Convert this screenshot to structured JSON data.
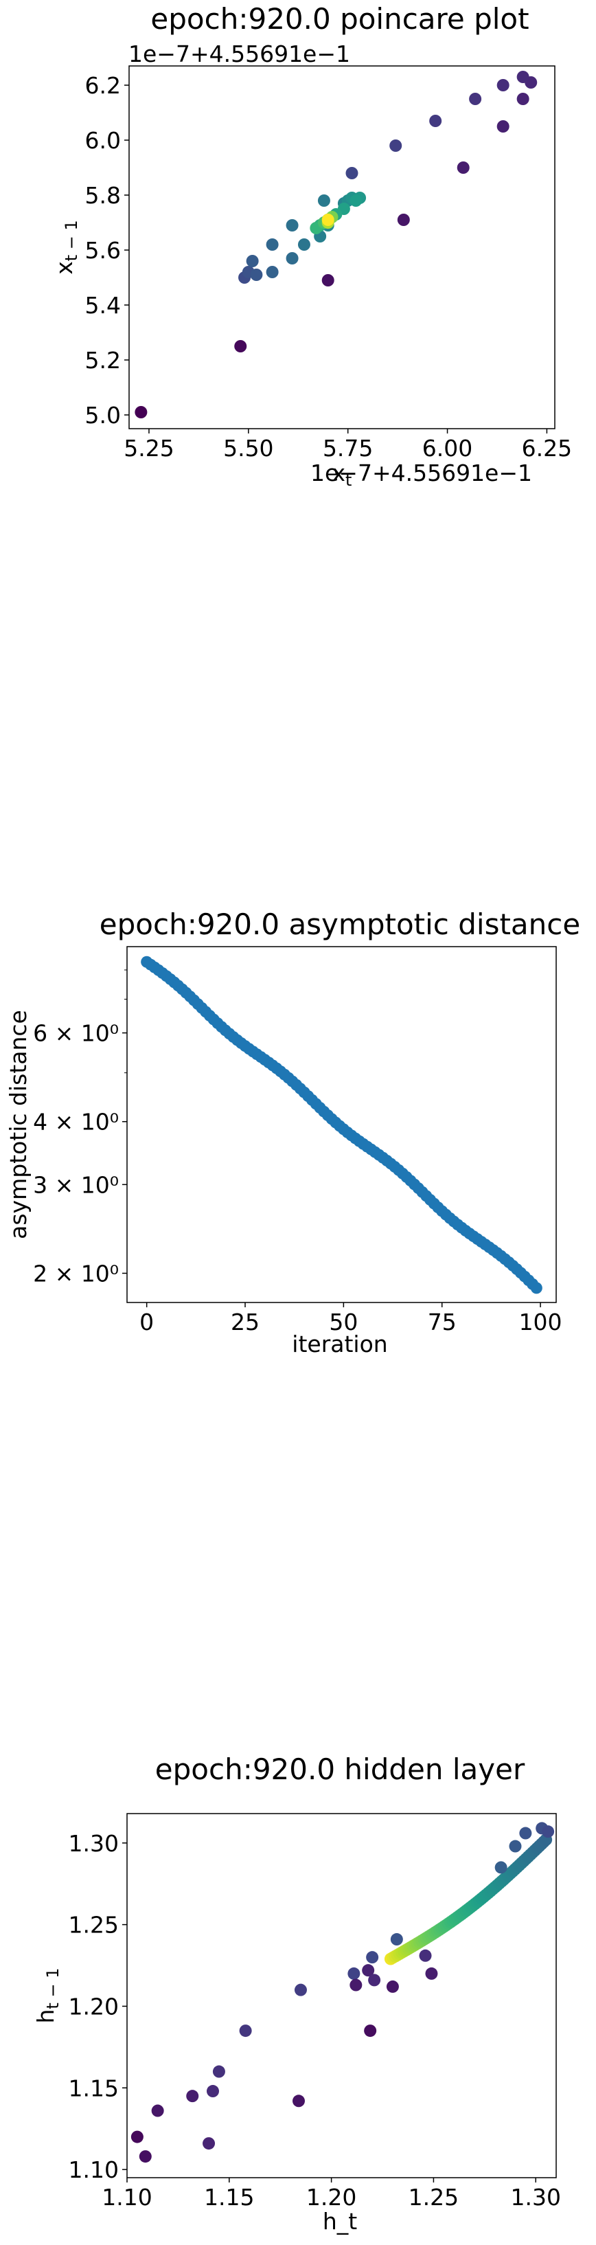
{
  "chart_data": [
    {
      "type": "scatter",
      "title": "epoch:920.0 poincare plot",
      "xlabel": "x_t",
      "ylabel": "x_{t-1}",
      "x_offset_label": "1e−7+4.55691e−1",
      "y_offset_label": "1e−7+4.55691e−1",
      "xlim": [
        5.2,
        6.27
      ],
      "ylim": [
        4.95,
        6.27
      ],
      "xticks": [
        "5.25",
        "5.50",
        "5.75",
        "6.00",
        "6.25"
      ],
      "yticks": [
        "5.0",
        "5.2",
        "5.4",
        "5.6",
        "5.8",
        "6.0",
        "6.2"
      ],
      "colormap": "viridis",
      "points": [
        {
          "x": 5.23,
          "y": 5.01,
          "c": 0.0
        },
        {
          "x": 5.48,
          "y": 5.25,
          "c": 0.02
        },
        {
          "x": 5.7,
          "y": 5.49,
          "c": 0.04
        },
        {
          "x": 5.89,
          "y": 5.71,
          "c": 0.06
        },
        {
          "x": 6.04,
          "y": 5.9,
          "c": 0.08
        },
        {
          "x": 6.14,
          "y": 6.05,
          "c": 0.09
        },
        {
          "x": 6.19,
          "y": 6.15,
          "c": 0.1
        },
        {
          "x": 6.21,
          "y": 6.21,
          "c": 0.11
        },
        {
          "x": 6.19,
          "y": 6.23,
          "c": 0.12
        },
        {
          "x": 6.14,
          "y": 6.2,
          "c": 0.13
        },
        {
          "x": 6.07,
          "y": 6.15,
          "c": 0.15
        },
        {
          "x": 5.97,
          "y": 6.07,
          "c": 0.17
        },
        {
          "x": 5.87,
          "y": 5.98,
          "c": 0.19
        },
        {
          "x": 5.76,
          "y": 5.88,
          "c": 0.21
        },
        {
          "x": 5.49,
          "y": 5.5,
          "c": 0.23
        },
        {
          "x": 5.5,
          "y": 5.52,
          "c": 0.25
        },
        {
          "x": 5.52,
          "y": 5.51,
          "c": 0.27
        },
        {
          "x": 5.51,
          "y": 5.56,
          "c": 0.29
        },
        {
          "x": 5.56,
          "y": 5.52,
          "c": 0.31
        },
        {
          "x": 5.56,
          "y": 5.62,
          "c": 0.33
        },
        {
          "x": 5.61,
          "y": 5.57,
          "c": 0.35
        },
        {
          "x": 5.61,
          "y": 5.69,
          "c": 0.37
        },
        {
          "x": 5.64,
          "y": 5.62,
          "c": 0.39
        },
        {
          "x": 5.69,
          "y": 5.78,
          "c": 0.41
        },
        {
          "x": 5.68,
          "y": 5.65,
          "c": 0.43
        },
        {
          "x": 5.74,
          "y": 5.77,
          "c": 0.45
        },
        {
          "x": 5.7,
          "y": 5.69,
          "c": 0.47
        },
        {
          "x": 5.75,
          "y": 5.78,
          "c": 0.49
        },
        {
          "x": 5.76,
          "y": 5.79,
          "c": 0.51
        },
        {
          "x": 5.78,
          "y": 5.79,
          "c": 0.53
        },
        {
          "x": 5.77,
          "y": 5.78,
          "c": 0.55
        },
        {
          "x": 5.74,
          "y": 5.75,
          "c": 0.57
        },
        {
          "x": 5.72,
          "y": 5.73,
          "c": 0.59
        },
        {
          "x": 5.7,
          "y": 5.71,
          "c": 0.61
        },
        {
          "x": 5.68,
          "y": 5.69,
          "c": 0.63
        },
        {
          "x": 5.67,
          "y": 5.68,
          "c": 0.66
        },
        {
          "x": 5.69,
          "y": 5.7,
          "c": 0.7
        },
        {
          "x": 5.7,
          "y": 5.71,
          "c": 0.75
        },
        {
          "x": 5.71,
          "y": 5.72,
          "c": 0.8
        },
        {
          "x": 5.7,
          "y": 5.7,
          "c": 0.88
        },
        {
          "x": 5.7,
          "y": 5.71,
          "c": 1.0
        }
      ]
    },
    {
      "type": "scatter",
      "title": "epoch:920.0 asymptotic distance",
      "xlabel": "iteration",
      "ylabel": "asymptotic distance",
      "xlim": [
        -5,
        104
      ],
      "ylim": [
        1.75,
        8.9
      ],
      "log_y": true,
      "xticks": [
        0,
        25,
        50,
        75,
        100
      ],
      "yticks": [
        {
          "value": 2,
          "label": "2 × 10⁰"
        },
        {
          "value": 3,
          "label": "3 × 10⁰"
        },
        {
          "value": 4,
          "label": "4 × 10⁰"
        },
        {
          "value": 6,
          "label": "6 × 10⁰"
        }
      ],
      "color": "#1f77b4",
      "x_start": 0,
      "x_end": 99,
      "y_start": 8.3,
      "y_end": 1.87
    },
    {
      "type": "scatter",
      "title": "epoch:920.0 hidden layer",
      "xlabel": "h_t",
      "ylabel": "h_{t-1}",
      "xlim": [
        1.1,
        1.31
      ],
      "ylim": [
        1.095,
        1.318
      ],
      "xticks": [
        "1.10",
        "1.15",
        "1.20",
        "1.25",
        "1.30"
      ],
      "yticks": [
        "1.10",
        "1.15",
        "1.20",
        "1.25",
        "1.30"
      ],
      "colormap": "viridis",
      "points": [
        {
          "x": 1.105,
          "y": 1.12,
          "c": 0.02
        },
        {
          "x": 1.109,
          "y": 1.108,
          "c": 0.04
        },
        {
          "x": 1.115,
          "y": 1.136,
          "c": 0.06
        },
        {
          "x": 1.132,
          "y": 1.145,
          "c": 0.08
        },
        {
          "x": 1.14,
          "y": 1.116,
          "c": 0.1
        },
        {
          "x": 1.142,
          "y": 1.148,
          "c": 0.12
        },
        {
          "x": 1.145,
          "y": 1.16,
          "c": 0.14
        },
        {
          "x": 1.158,
          "y": 1.185,
          "c": 0.16
        },
        {
          "x": 1.185,
          "y": 1.21,
          "c": 0.18
        },
        {
          "x": 1.184,
          "y": 1.142,
          "c": 0.05
        },
        {
          "x": 1.211,
          "y": 1.22,
          "c": 0.2
        },
        {
          "x": 1.212,
          "y": 1.213,
          "c": 0.07
        },
        {
          "x": 1.218,
          "y": 1.222,
          "c": 0.09
        },
        {
          "x": 1.219,
          "y": 1.185,
          "c": 0.03
        },
        {
          "x": 1.22,
          "y": 1.23,
          "c": 0.22
        },
        {
          "x": 1.221,
          "y": 1.216,
          "c": 0.11
        },
        {
          "x": 1.23,
          "y": 1.212,
          "c": 0.06
        },
        {
          "x": 1.232,
          "y": 1.241,
          "c": 0.26
        },
        {
          "x": 1.246,
          "y": 1.231,
          "c": 0.13
        },
        {
          "x": 1.249,
          "y": 1.22,
          "c": 0.08
        },
        {
          "x": 1.283,
          "y": 1.285,
          "c": 0.3
        },
        {
          "x": 1.29,
          "y": 1.298,
          "c": 0.28
        },
        {
          "x": 1.295,
          "y": 1.306,
          "c": 0.26
        },
        {
          "x": 1.303,
          "y": 1.309,
          "c": 0.24
        },
        {
          "x": 1.306,
          "y": 1.307,
          "c": 0.22
        }
      ],
      "curve": {
        "x_start": 1.229,
        "y_start": 1.229,
        "x_end": 1.305,
        "y_end": 1.302,
        "c_start": 0.98,
        "c_end": 0.33
      }
    }
  ]
}
